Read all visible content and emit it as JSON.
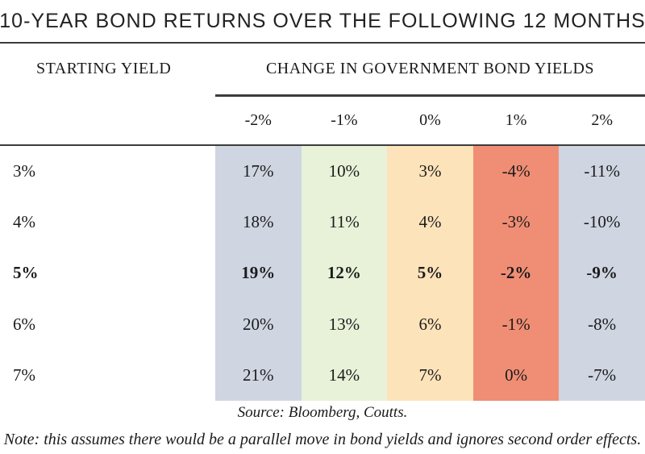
{
  "title": "10-YEAR BOND RETURNS OVER THE FOLLOWING 12 MONTHS",
  "table": {
    "row_header_label": "STARTING YIELD",
    "col_group_label": "CHANGE IN GOVERNMENT BOND YIELDS",
    "col_headers": [
      "-2%",
      "-1%",
      "0%",
      "1%",
      "2%"
    ],
    "column_colors": [
      "#cfd5e1",
      "#e7f2d9",
      "#fde3ba",
      "#f08e75",
      "#cfd5e1"
    ],
    "highlight_border_color": "#0a0a0a",
    "rule_color": "#3c3c3c",
    "rows": [
      {
        "label": "3%",
        "values": [
          "17%",
          "10%",
          "3%",
          "-4%",
          "-11%"
        ],
        "highlighted": false
      },
      {
        "label": "4%",
        "values": [
          "18%",
          "11%",
          "4%",
          "-3%",
          "-10%"
        ],
        "highlighted": false
      },
      {
        "label": "5%",
        "values": [
          "19%",
          "12%",
          "5%",
          "-2%",
          "-9%"
        ],
        "highlighted": true
      },
      {
        "label": "6%",
        "values": [
          "20%",
          "13%",
          "6%",
          "-1%",
          "-8%"
        ],
        "highlighted": false
      },
      {
        "label": "7%",
        "values": [
          "21%",
          "14%",
          "7%",
          "0%",
          "-7%"
        ],
        "highlighted": false
      }
    ]
  },
  "source": "Source: Bloomberg, Coutts.",
  "note": "Note: this assumes there would be a parallel move in bond yields and ignores second order effects.",
  "chart_data": {
    "type": "table",
    "title": "10-YEAR BOND RETURNS OVER THE FOLLOWING 12 MONTHS",
    "row_axis_label": "STARTING YIELD",
    "column_axis_label": "CHANGE IN GOVERNMENT BOND YIELDS",
    "columns": [
      "-2%",
      "-1%",
      "0%",
      "1%",
      "2%"
    ],
    "rows": [
      "3%",
      "4%",
      "5%",
      "6%",
      "7%"
    ],
    "values_pct": [
      [
        17,
        10,
        3,
        -4,
        -11
      ],
      [
        18,
        11,
        4,
        -3,
        -10
      ],
      [
        19,
        12,
        5,
        -2,
        -9
      ],
      [
        20,
        13,
        6,
        -1,
        -8
      ],
      [
        21,
        14,
        7,
        0,
        -7
      ]
    ],
    "highlighted_row": "5%",
    "source": "Source: Bloomberg, Coutts.",
    "note": "Note: this assumes there would be a parallel move in bond yields and ignores second order effects."
  }
}
